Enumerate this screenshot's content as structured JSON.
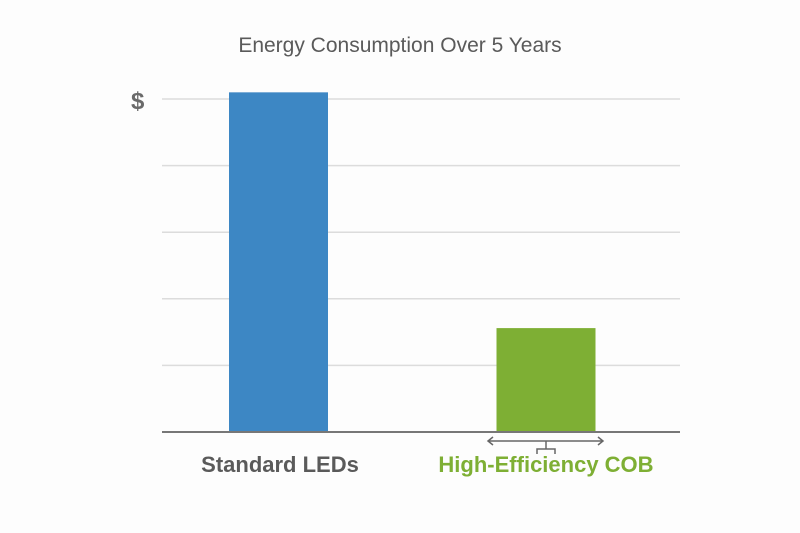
{
  "chart_data": {
    "type": "bar",
    "title": "Energy Consumption Over 5 Years",
    "ylabel": "$",
    "xlabel": "",
    "categories": [
      "Standard LEDs",
      "High-Efficiency COB"
    ],
    "values": [
      5.1,
      1.56
    ],
    "ylim": [
      0,
      5
    ],
    "grid": true,
    "colors": [
      "#3d87c4",
      "#7eaf34"
    ],
    "category_label_colors": [
      "#5a5a5a",
      "#7eaf34"
    ]
  }
}
